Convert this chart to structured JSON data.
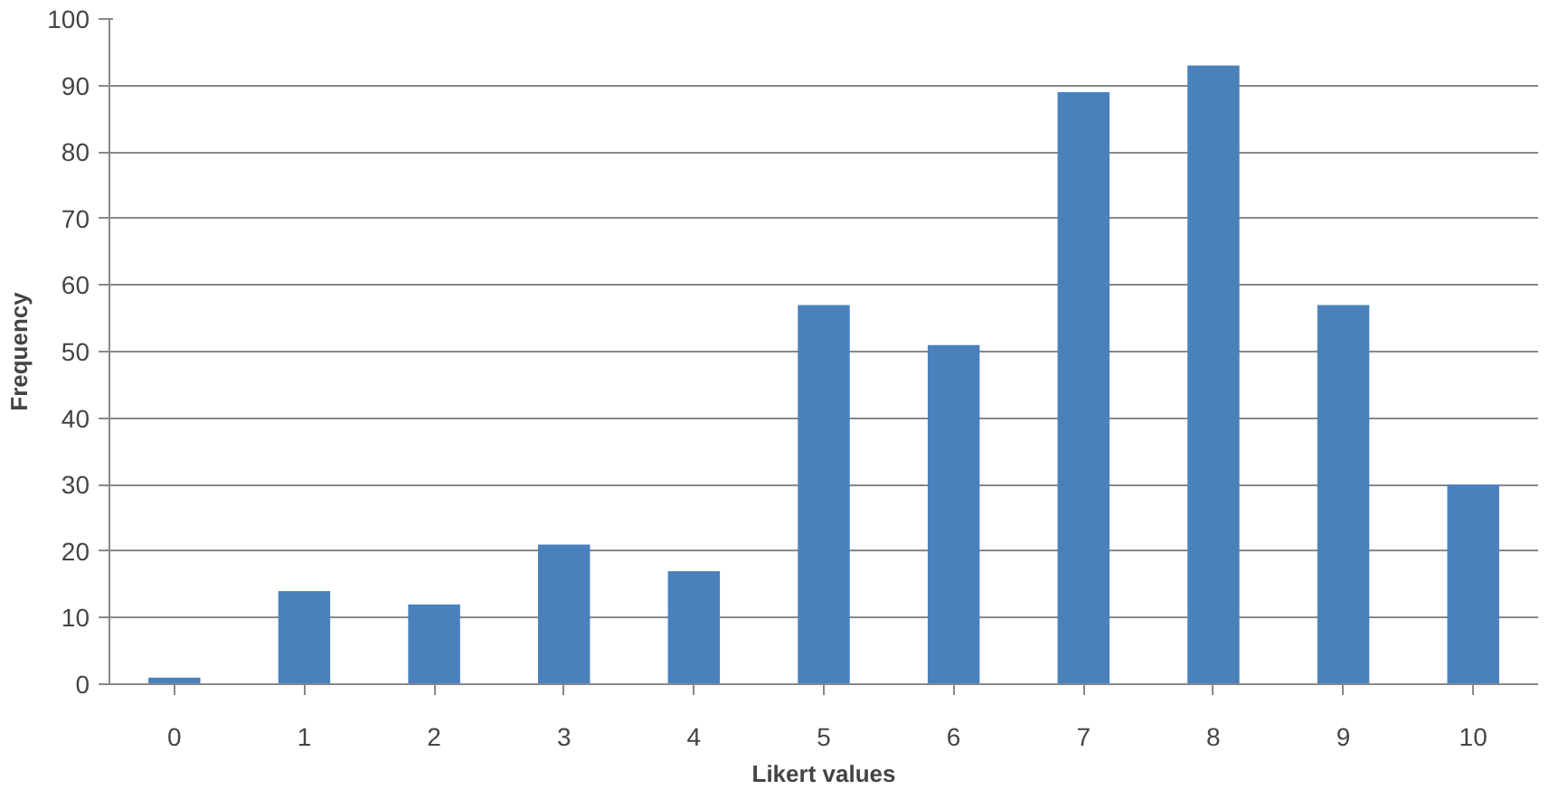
{
  "chart_data": {
    "type": "bar",
    "xlabel": "Likert values",
    "ylabel": "Frequency",
    "categories": [
      "0",
      "1",
      "2",
      "3",
      "4",
      "5",
      "6",
      "7",
      "8",
      "9",
      "10"
    ],
    "values": [
      1,
      14,
      12,
      21,
      17,
      57,
      51,
      89,
      93,
      57,
      30
    ],
    "color": "#4a81bd",
    "ylim": [
      0,
      100
    ],
    "yticks": [
      0,
      10,
      20,
      30,
      40,
      50,
      60,
      70,
      80,
      90,
      100
    ],
    "grid": "y"
  }
}
